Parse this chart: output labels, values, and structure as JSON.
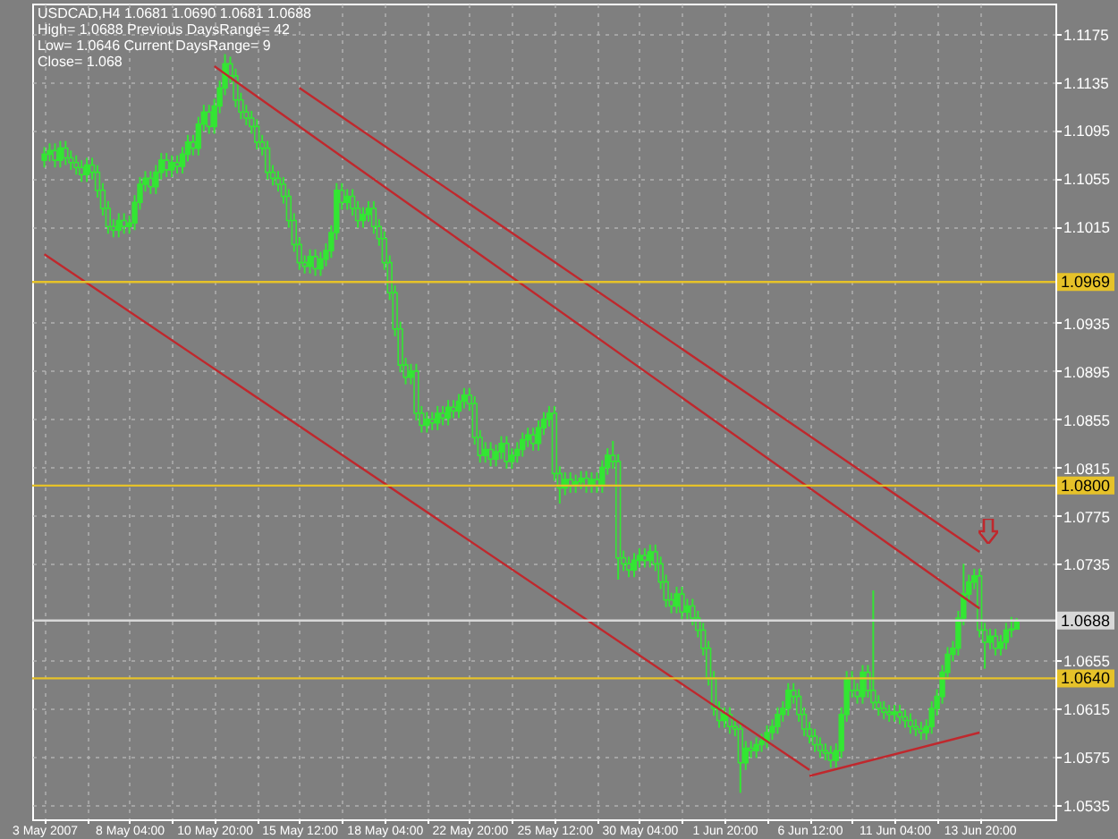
{
  "chart_data": {
    "type": "candlestick",
    "title": "USDCAD,H4  1.0681 1.0690 1.0681 1.0688",
    "annotations": [
      "High= 1.0688 Previous DaysRange= 42",
      "Low= 1.0646 Current DaysRange= 9",
      "Close= 1.068"
    ],
    "color": "#33e633",
    "categories": [
      "3 May 2007",
      null,
      null,
      null,
      null,
      null,
      null,
      null,
      null,
      null,
      null,
      null,
      null,
      null,
      null,
      null,
      "8 May 04:00",
      null,
      null,
      null,
      null,
      null,
      null,
      null,
      null,
      null,
      null,
      null,
      null,
      null,
      null,
      null,
      "10 May 20:00",
      null,
      null,
      null,
      null,
      null,
      null,
      null,
      null,
      null,
      null,
      null,
      null,
      null,
      null,
      null,
      "15 May 12:00",
      null,
      null,
      null,
      null,
      null,
      null,
      null,
      null,
      null,
      null,
      null,
      null,
      null,
      null,
      null,
      "18 May 04:00",
      null,
      null,
      null,
      null,
      null,
      null,
      null,
      null,
      null,
      null,
      null,
      null,
      null,
      null,
      null,
      "22 May 20:00",
      null,
      null,
      null,
      null,
      null,
      null,
      null,
      null,
      null,
      null,
      null,
      null,
      null,
      null,
      null,
      "25 May 12:00",
      null,
      null,
      null,
      null,
      null,
      null,
      null,
      null,
      null,
      null,
      null,
      null,
      null,
      null,
      null,
      "30 May 04:00",
      null,
      null,
      null,
      null,
      null,
      null,
      null,
      null,
      null,
      null,
      null,
      null,
      null,
      null,
      null,
      "1 Jun 20:00",
      null,
      null,
      null,
      null,
      null,
      null,
      null,
      null,
      null,
      null,
      null,
      null,
      null,
      null,
      null,
      "6 Jun 12:00",
      null,
      null,
      null,
      null,
      null,
      null,
      null,
      null,
      null,
      null,
      null,
      null,
      null,
      null,
      null,
      "11 Jun 04:00",
      null,
      null,
      null,
      null,
      null,
      null,
      null,
      null,
      null,
      null,
      null,
      null,
      null,
      null,
      null,
      "13 Jun 20:00",
      null,
      null,
      null,
      null,
      null,
      null,
      null,
      null,
      null,
      null,
      null,
      null
    ],
    "ohlc": [
      [
        1.107,
        1.1081,
        1.1064,
        1.1075
      ],
      [
        1.1075,
        1.1084,
        1.1069,
        1.1078
      ],
      [
        1.1078,
        1.1084,
        1.1064,
        1.107
      ],
      [
        1.107,
        1.1086,
        1.1064,
        1.108
      ],
      [
        1.108,
        1.1086,
        1.1066,
        1.1072
      ],
      [
        1.1072,
        1.1078,
        1.1062,
        1.1068
      ],
      [
        1.1068,
        1.1074,
        1.1058,
        1.1064
      ],
      [
        1.1064,
        1.107,
        1.1052,
        1.1058
      ],
      [
        1.1058,
        1.1072,
        1.1052,
        1.1066
      ],
      [
        1.1066,
        1.1072,
        1.1054,
        1.106
      ],
      [
        1.106,
        1.1066,
        1.1039,
        1.1045
      ],
      [
        1.1045,
        1.1051,
        1.1024,
        1.103
      ],
      [
        1.103,
        1.1036,
        1.1009,
        1.1015
      ],
      [
        1.1015,
        1.1021,
        1.1006,
        1.1012
      ],
      [
        1.1012,
        1.1026,
        1.1006,
        1.102
      ],
      [
        1.102,
        1.1026,
        1.1009,
        1.1015
      ],
      [
        1.1015,
        1.1024,
        1.1009,
        1.1018
      ],
      [
        1.1018,
        1.1041,
        1.1012,
        1.1035
      ],
      [
        1.1035,
        1.1056,
        1.1029,
        1.105
      ],
      [
        1.105,
        1.1061,
        1.1044,
        1.1055
      ],
      [
        1.1055,
        1.1061,
        1.1042,
        1.1048
      ],
      [
        1.1048,
        1.1066,
        1.1042,
        1.106
      ],
      [
        1.106,
        1.1076,
        1.1054,
        1.107
      ],
      [
        1.107,
        1.1076,
        1.1056,
        1.1062
      ],
      [
        1.1062,
        1.1074,
        1.1056,
        1.1068
      ],
      [
        1.1068,
        1.1074,
        1.1059,
        1.1065
      ],
      [
        1.1065,
        1.1081,
        1.1059,
        1.1075
      ],
      [
        1.1075,
        1.1091,
        1.1069,
        1.1085
      ],
      [
        1.1085,
        1.1091,
        1.1074,
        1.108
      ],
      [
        1.108,
        1.1106,
        1.1074,
        1.11
      ],
      [
        1.11,
        1.1116,
        1.1094,
        1.111
      ],
      [
        1.111,
        1.1116,
        1.1092,
        1.1098
      ],
      [
        1.1098,
        1.1121,
        1.1092,
        1.1115
      ],
      [
        1.1115,
        1.1136,
        1.1109,
        1.113
      ],
      [
        1.113,
        1.1158,
        1.1124,
        1.115
      ],
      [
        1.115,
        1.1156,
        1.1134,
        1.114
      ],
      [
        1.114,
        1.1146,
        1.1114,
        1.112
      ],
      [
        1.112,
        1.1126,
        1.1104,
        1.111
      ],
      [
        1.111,
        1.1116,
        1.1099,
        1.1105
      ],
      [
        1.1105,
        1.1111,
        1.1092,
        1.1098
      ],
      [
        1.1098,
        1.1104,
        1.1079,
        1.1085
      ],
      [
        1.1085,
        1.1091,
        1.1074,
        1.108
      ],
      [
        1.108,
        1.1086,
        1.1054,
        1.106
      ],
      [
        1.106,
        1.1066,
        1.1049,
        1.1055
      ],
      [
        1.1055,
        1.1061,
        1.1044,
        1.105
      ],
      [
        1.105,
        1.1056,
        1.1034,
        1.104
      ],
      [
        1.104,
        1.1046,
        1.1014,
        1.102
      ],
      [
        1.102,
        1.1026,
        1.0994,
        1.1
      ],
      [
        1.1,
        1.1006,
        1.0979,
        1.0985
      ],
      [
        1.0985,
        1.0991,
        1.0976,
        1.0982
      ],
      [
        1.0982,
        1.0996,
        1.0976,
        1.099
      ],
      [
        1.099,
        1.0996,
        1.0974,
        1.098
      ],
      [
        1.098,
        1.0994,
        1.0974,
        1.0988
      ],
      [
        1.0988,
        1.1001,
        1.0982,
        1.0995
      ],
      [
        1.0995,
        1.1016,
        1.0989,
        1.101
      ],
      [
        1.101,
        1.1051,
        1.1004,
        1.1045
      ],
      [
        1.1045,
        1.1051,
        1.1029,
        1.1035
      ],
      [
        1.1035,
        1.1046,
        1.1029,
        1.104
      ],
      [
        1.104,
        1.1046,
        1.1024,
        1.103
      ],
      [
        1.103,
        1.1036,
        1.1014,
        1.102
      ],
      [
        1.102,
        1.1031,
        1.1014,
        1.1025
      ],
      [
        1.1025,
        1.1036,
        1.1019,
        1.103
      ],
      [
        1.103,
        1.1036,
        1.1009,
        1.1015
      ],
      [
        1.1015,
        1.1021,
        1.0999,
        1.1005
      ],
      [
        1.1005,
        1.1011,
        1.0979,
        1.0985
      ],
      [
        1.0985,
        1.0991,
        1.0954,
        1.096
      ],
      [
        1.096,
        1.0966,
        1.0924,
        1.093
      ],
      [
        1.093,
        1.0936,
        1.0894,
        1.09
      ],
      [
        1.09,
        1.0906,
        1.0884,
        1.089
      ],
      [
        1.089,
        1.0901,
        1.0884,
        1.0895
      ],
      [
        1.0895,
        1.0901,
        1.0854,
        1.086
      ],
      [
        1.086,
        1.0866,
        1.0844,
        1.085
      ],
      [
        1.085,
        1.0861,
        1.0844,
        1.0855
      ],
      [
        1.0855,
        1.0861,
        1.0846,
        1.0852
      ],
      [
        1.0852,
        1.0866,
        1.0846,
        1.086
      ],
      [
        1.086,
        1.0866,
        1.085,
        1.0856
      ],
      [
        1.0856,
        1.0871,
        1.085,
        1.0865
      ],
      [
        1.0865,
        1.0871,
        1.0856,
        1.0862
      ],
      [
        1.0862,
        1.0876,
        1.0856,
        1.087
      ],
      [
        1.087,
        1.0881,
        1.0864,
        1.0875
      ],
      [
        1.0875,
        1.0881,
        1.0862,
        1.0868
      ],
      [
        1.0868,
        1.0874,
        1.0834,
        1.084
      ],
      [
        1.084,
        1.0846,
        1.0819,
        1.0825
      ],
      [
        1.0825,
        1.0836,
        1.0819,
        1.083
      ],
      [
        1.083,
        1.0836,
        1.0816,
        1.0822
      ],
      [
        1.0822,
        1.0834,
        1.0816,
        1.0828
      ],
      [
        1.0828,
        1.0841,
        1.0822,
        1.0835
      ],
      [
        1.0835,
        1.0841,
        1.0814,
        1.082
      ],
      [
        1.082,
        1.0831,
        1.0814,
        1.0825
      ],
      [
        1.0825,
        1.0836,
        1.0819,
        1.083
      ],
      [
        1.083,
        1.0844,
        1.0824,
        1.0838
      ],
      [
        1.0838,
        1.0848,
        1.0832,
        1.0842
      ],
      [
        1.0842,
        1.0848,
        1.0829,
        1.0835
      ],
      [
        1.0835,
        1.0854,
        1.0829,
        1.0848
      ],
      [
        1.0848,
        1.0861,
        1.0842,
        1.0855
      ],
      [
        1.0855,
        1.0866,
        1.0849,
        1.086
      ],
      [
        1.086,
        1.0866,
        1.0804,
        1.081
      ],
      [
        1.081,
        1.0816,
        1.0785,
        1.0798
      ],
      [
        1.0798,
        1.0811,
        1.0792,
        1.0805
      ],
      [
        1.0805,
        1.0811,
        1.0794,
        1.08
      ],
      [
        1.08,
        1.0809,
        1.0794,
        1.0803
      ],
      [
        1.0803,
        1.0812,
        1.0797,
        1.0806
      ],
      [
        1.0806,
        1.0812,
        1.0794,
        1.08
      ],
      [
        1.08,
        1.0811,
        1.0794,
        1.0805
      ],
      [
        1.0805,
        1.0811,
        1.0794,
        1.08
      ],
      [
        1.08,
        1.0821,
        1.0794,
        1.0815
      ],
      [
        1.0815,
        1.0831,
        1.0809,
        1.0825
      ],
      [
        1.0825,
        1.0837,
        1.0814,
        1.082
      ],
      [
        1.082,
        1.0826,
        1.0722,
        1.074
      ],
      [
        1.074,
        1.0746,
        1.0729,
        1.0735
      ],
      [
        1.0735,
        1.0741,
        1.0724,
        1.073
      ],
      [
        1.073,
        1.0744,
        1.0724,
        1.0738
      ],
      [
        1.0738,
        1.0748,
        1.0732,
        1.0742
      ],
      [
        1.0742,
        1.0748,
        1.0732,
        1.0738
      ],
      [
        1.0738,
        1.0751,
        1.0732,
        1.0745
      ],
      [
        1.0745,
        1.0751,
        1.0729,
        1.0735
      ],
      [
        1.0735,
        1.0741,
        1.0714,
        1.072
      ],
      [
        1.072,
        1.0726,
        1.0699,
        1.0705
      ],
      [
        1.0705,
        1.0711,
        1.0694,
        1.07
      ],
      [
        1.07,
        1.0716,
        1.0694,
        1.071
      ],
      [
        1.071,
        1.0716,
        1.0689,
        1.0695
      ],
      [
        1.0695,
        1.0706,
        1.0689,
        1.07
      ],
      [
        1.07,
        1.0706,
        1.0684,
        1.069
      ],
      [
        1.069,
        1.0696,
        1.0674,
        1.068
      ],
      [
        1.068,
        1.0686,
        1.0659,
        1.0665
      ],
      [
        1.0665,
        1.0671,
        1.0634,
        1.064
      ],
      [
        1.064,
        1.0646,
        1.0609,
        1.0615
      ],
      [
        1.0615,
        1.0621,
        1.0599,
        1.0605
      ],
      [
        1.0605,
        1.0616,
        1.0599,
        1.061
      ],
      [
        1.061,
        1.0616,
        1.0594,
        1.06
      ],
      [
        1.06,
        1.0606,
        1.0592,
        1.0598
      ],
      [
        1.0598,
        1.0604,
        1.0545,
        1.057
      ],
      [
        1.057,
        1.0588,
        1.0564,
        1.0582
      ],
      [
        1.0582,
        1.0588,
        1.0574,
        1.058
      ],
      [
        1.058,
        1.0591,
        1.0574,
        1.0585
      ],
      [
        1.0585,
        1.0594,
        1.0579,
        1.0588
      ],
      [
        1.0588,
        1.0601,
        1.0582,
        1.0595
      ],
      [
        1.0595,
        1.0606,
        1.0589,
        1.06
      ],
      [
        1.06,
        1.0616,
        1.0594,
        1.061
      ],
      [
        1.061,
        1.0621,
        1.0604,
        1.0615
      ],
      [
        1.0615,
        1.0636,
        1.0609,
        1.063
      ],
      [
        1.063,
        1.0636,
        1.0619,
        1.0625
      ],
      [
        1.0625,
        1.0631,
        1.0604,
        1.061
      ],
      [
        1.061,
        1.0616,
        1.0592,
        1.0598
      ],
      [
        1.0598,
        1.0604,
        1.0586,
        1.0592
      ],
      [
        1.0592,
        1.0598,
        1.0579,
        1.0585
      ],
      [
        1.0585,
        1.0591,
        1.0574,
        1.058
      ],
      [
        1.058,
        1.0586,
        1.0572,
        1.0578
      ],
      [
        1.0578,
        1.0584,
        1.0566,
        1.0572
      ],
      [
        1.0572,
        1.0586,
        1.0566,
        1.058
      ],
      [
        1.058,
        1.0616,
        1.0574,
        1.061
      ],
      [
        1.061,
        1.0646,
        1.0604,
        1.064
      ],
      [
        1.064,
        1.0646,
        1.0624,
        1.063
      ],
      [
        1.063,
        1.0636,
        1.0619,
        1.0625
      ],
      [
        1.0625,
        1.0651,
        1.0619,
        1.0645
      ],
      [
        1.0645,
        1.0651,
        1.0624,
        1.063
      ],
      [
        1.063,
        1.0713,
        1.0614,
        1.062
      ],
      [
        1.062,
        1.0626,
        1.0609,
        1.0615
      ],
      [
        1.0615,
        1.0621,
        1.0606,
        1.0612
      ],
      [
        1.0612,
        1.0618,
        1.0604,
        1.061
      ],
      [
        1.061,
        1.0618,
        1.0604,
        1.0612
      ],
      [
        1.0612,
        1.0618,
        1.0602,
        1.0608
      ],
      [
        1.0608,
        1.0614,
        1.0599,
        1.0605
      ],
      [
        1.0605,
        1.0611,
        1.0594,
        1.06
      ],
      [
        1.06,
        1.0606,
        1.0592,
        1.0598
      ],
      [
        1.0598,
        1.0604,
        1.0589,
        1.0595
      ],
      [
        1.0595,
        1.0606,
        1.0589,
        1.06
      ],
      [
        1.06,
        1.0621,
        1.0594,
        1.0615
      ],
      [
        1.0615,
        1.0631,
        1.0609,
        1.0625
      ],
      [
        1.0625,
        1.0651,
        1.0619,
        1.0645
      ],
      [
        1.0645,
        1.0666,
        1.0639,
        1.066
      ],
      [
        1.066,
        1.0671,
        1.0654,
        1.0665
      ],
      [
        1.0665,
        1.0696,
        1.0659,
        1.069
      ],
      [
        1.069,
        1.0735,
        1.0684,
        1.071
      ],
      [
        1.071,
        1.0726,
        1.0704,
        1.072
      ],
      [
        1.072,
        1.0731,
        1.0714,
        1.0725
      ],
      [
        1.0725,
        1.0731,
        1.0674,
        1.068
      ],
      [
        1.068,
        1.0686,
        1.0648,
        1.067
      ],
      [
        1.067,
        1.0681,
        1.0664,
        1.0675
      ],
      [
        1.0675,
        1.0681,
        1.0659,
        1.0665
      ],
      [
        1.0665,
        1.0676,
        1.0659,
        1.067
      ],
      [
        1.067,
        1.0686,
        1.0664,
        1.068
      ],
      [
        1.068,
        1.0691,
        1.0674,
        1.0681
      ],
      [
        1.0681,
        1.069,
        1.0681,
        1.0688
      ],
      null,
      null,
      null,
      null,
      null
    ],
    "series": [
      {
        "type": "line",
        "color": "#c0282d",
        "x": [
          "10 May 20:00",
          "13 Jun 20:00"
        ],
        "values": [
          1.1148,
          1.0698
        ]
      },
      {
        "type": "line",
        "color": "#c0282d",
        "x": [
          "15 May 12:00",
          "13 Jun 20:00"
        ],
        "values": [
          1.113,
          1.0745
        ]
      },
      {
        "type": "line",
        "color": "#c0282d",
        "x": [
          "3 May 2007",
          "6 Jun 12:00"
        ],
        "values": [
          1.0992,
          1.0564
        ]
      },
      {
        "type": "line",
        "color": "#c0282d",
        "x": [
          "6 Jun 12:00",
          "13 Jun 20:00"
        ],
        "values": [
          1.0559,
          1.0595
        ]
      }
    ],
    "line_style": "solid",
    "ref_lines": [
      {
        "axis": "y",
        "value": 1.0969,
        "label": "1.0969",
        "color": "#e6c229"
      },
      {
        "axis": "y",
        "value": 1.08,
        "label": "1.0800",
        "color": "#e6c229"
      },
      {
        "axis": "y",
        "value": 1.064,
        "label": "1.0640",
        "color": "#e6c229"
      },
      {
        "axis": "y",
        "value": 1.0688,
        "label": "1.0688",
        "color": "#d8d8d8"
      }
    ],
    "ylim": [
      1.0523,
      1.12
    ],
    "yticks": [
      1.0535,
      1.0575,
      1.0615,
      1.0655,
      1.0735,
      1.0775,
      1.0815,
      1.0855,
      1.0895,
      1.0935,
      1.1015,
      1.1055,
      1.1095,
      1.1135,
      1.1175
    ],
    "grid": true
  }
}
